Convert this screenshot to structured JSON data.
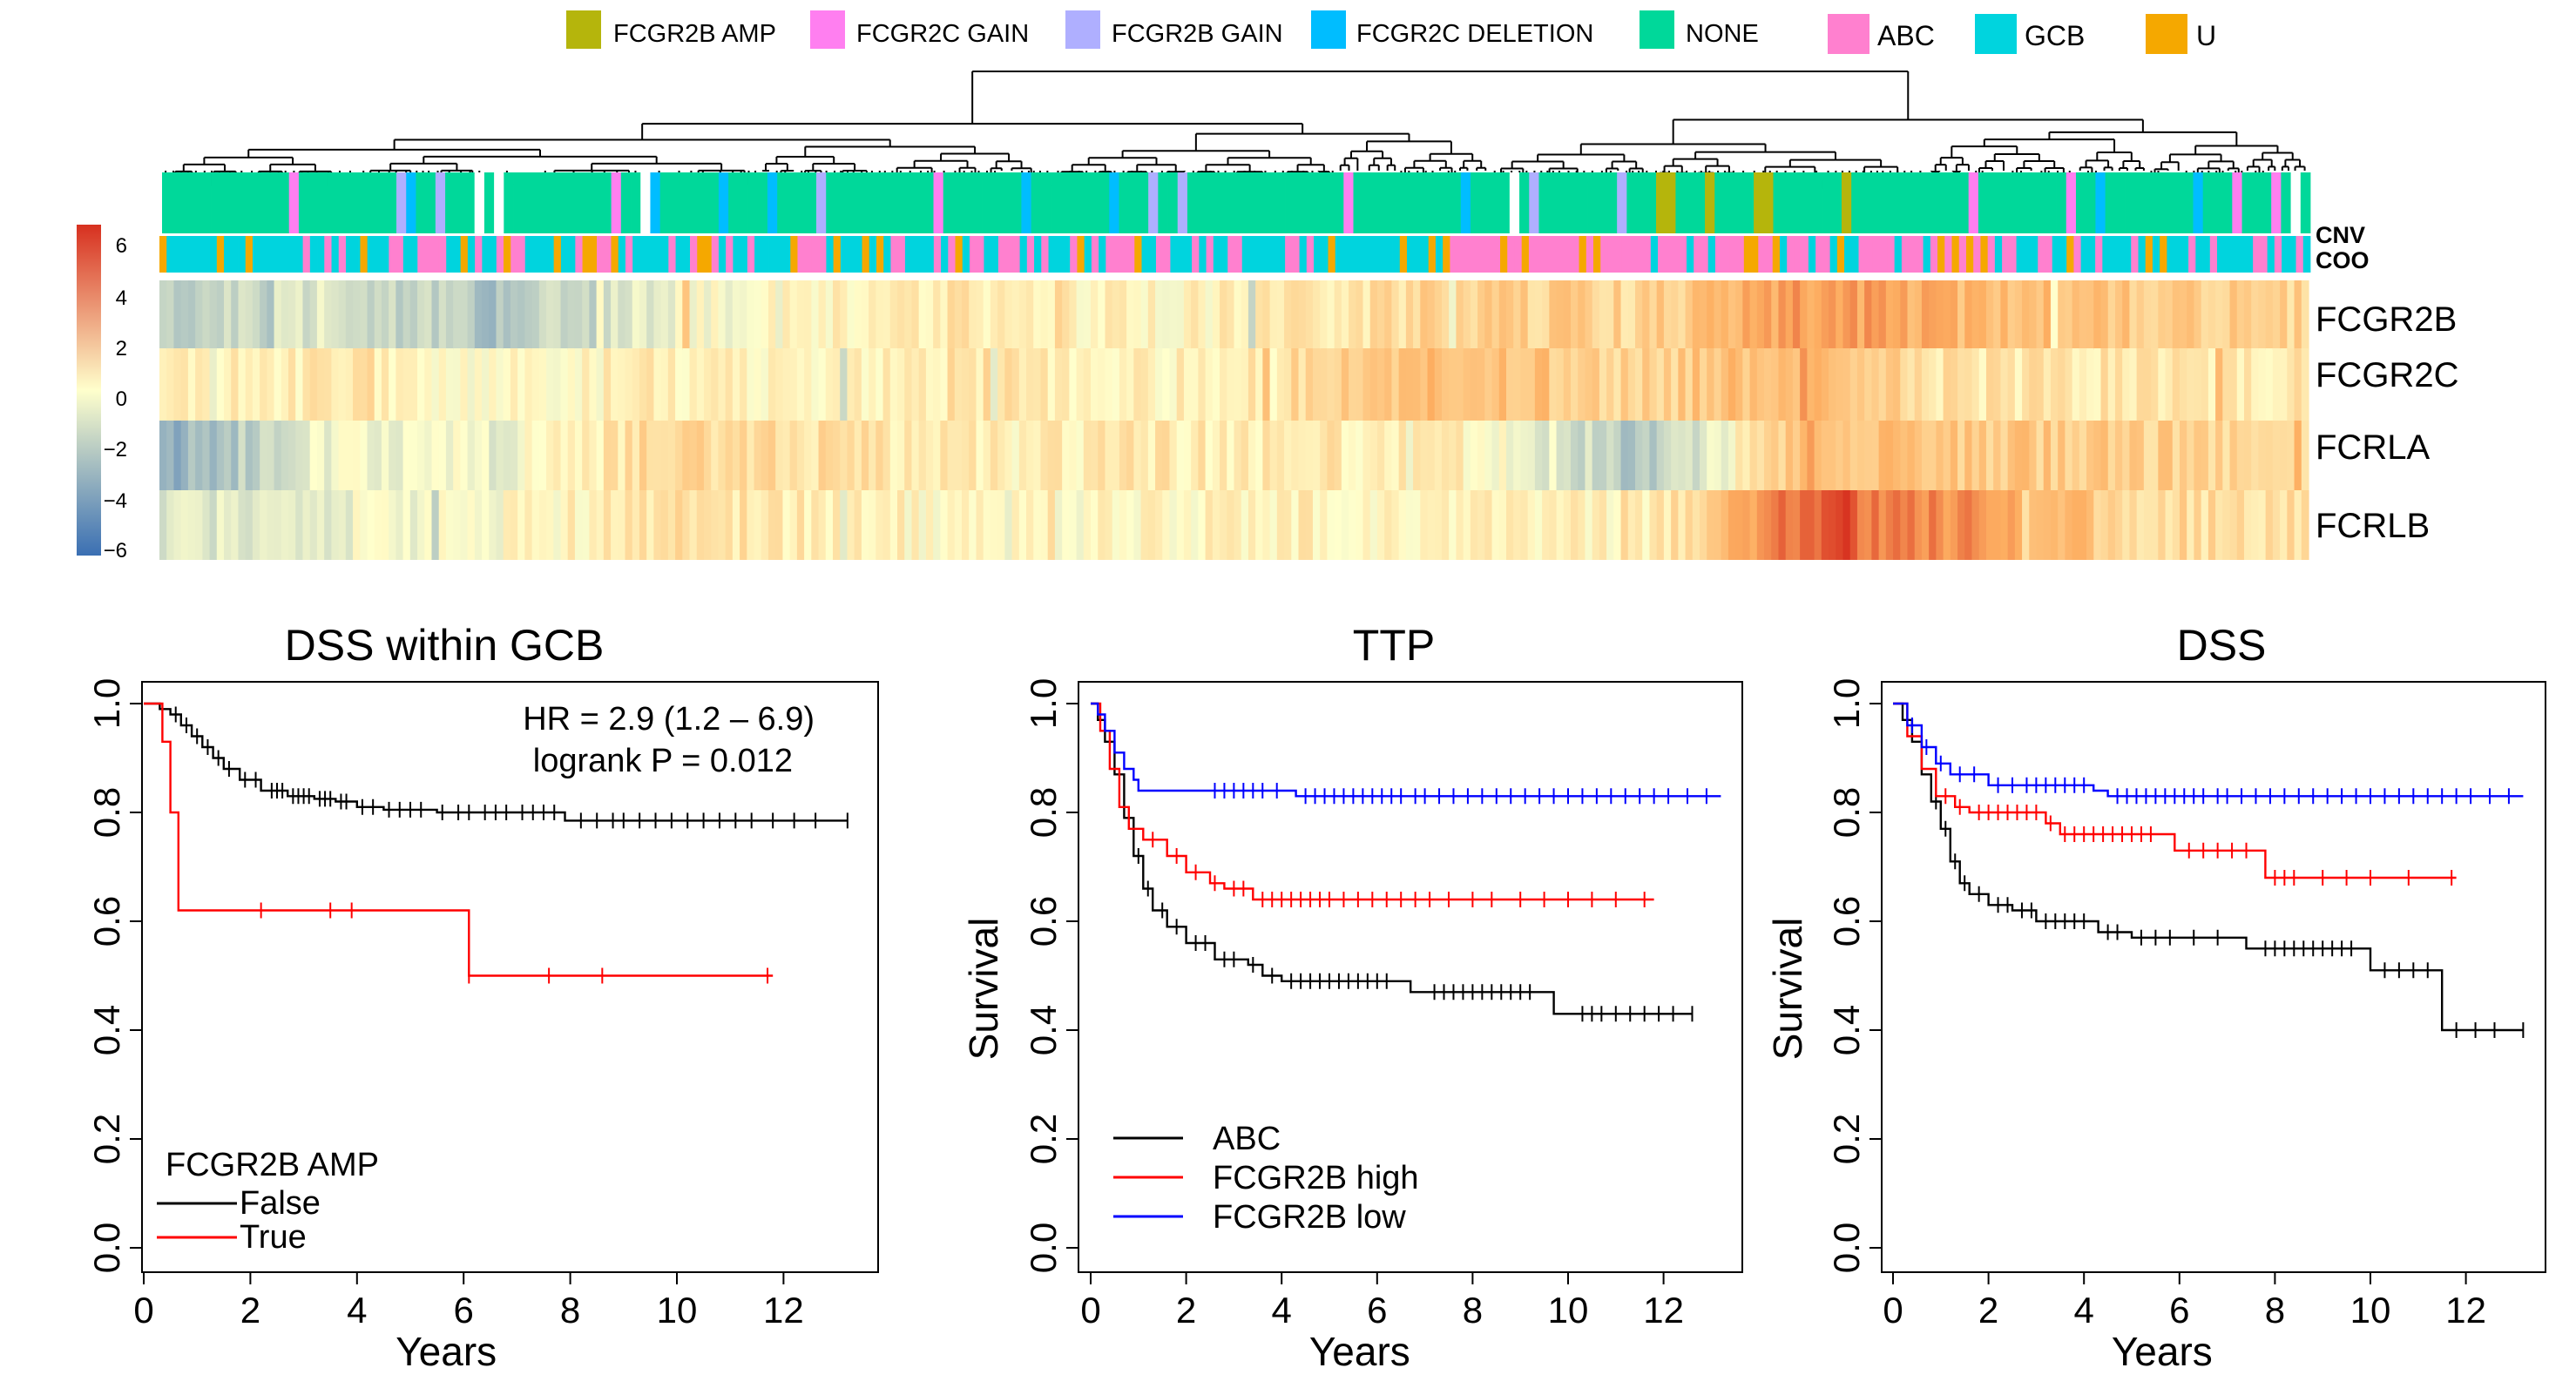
{
  "heatmap_panel": {
    "legend": {
      "cnv_keys": [
        {
          "label": "FCGR2B AMP",
          "color": "#b5b50c"
        },
        {
          "label": "FCGR2C GAIN",
          "color": "#ff7ff0"
        },
        {
          "label": "FCGR2B GAIN",
          "color": "#afafff"
        },
        {
          "label": "FCGR2C DELETION",
          "color": "#00bdff"
        },
        {
          "label": "NONE",
          "color": "#00d89a"
        }
      ],
      "coo_keys": [
        {
          "label": "ABC",
          "color": "#ff80cf"
        },
        {
          "label": "GCB",
          "color": "#00d4de"
        },
        {
          "label": "U",
          "color": "#f5a800"
        }
      ]
    },
    "annotation_labels": [
      "CNV",
      "COO"
    ],
    "color_scale": {
      "ticks": [
        "6",
        "4",
        "2",
        "0",
        "−2",
        "−4",
        "−6"
      ],
      "low_color": "#3a6fb3",
      "mid_color": "#ffffcc",
      "high_color": "#d7301f"
    }
  },
  "chart_data": [
    {
      "type": "heatmap",
      "rows": [
        "FCGR2B",
        "FCGR2C",
        "FCRLA",
        "FCRLB"
      ],
      "annotation_tracks": [
        "CNV",
        "COO"
      ],
      "value_range": [
        -6,
        6
      ],
      "column_sections": [
        {
          "FCGR2B": -2.0,
          "FCGR2C": 0.3,
          "FCRLA": -3.5,
          "FCRLB": -1.0
        },
        {
          "FCGR2B": -1.0,
          "FCGR2C": 0.8,
          "FCRLA": -0.5,
          "FCRLB": -0.5
        },
        {
          "FCGR2B": -2.5,
          "FCGR2C": 0.2,
          "FCRLA": -0.5,
          "FCRLB": 0.0
        },
        {
          "FCGR2B": -0.5,
          "FCGR2C": 0.5,
          "FCRLA": 1.5,
          "FCRLB": 1.0
        },
        {
          "FCGR2B": 0.5,
          "FCGR2C": 0.5,
          "FCRLA": 1.2,
          "FCRLB": 0.8
        },
        {
          "FCGR2B": 0.8,
          "FCGR2C": 1.0,
          "FCRLA": 0.5,
          "FCRLB": 0.0
        },
        {
          "FCGR2B": 0.3,
          "FCGR2C": 0.3,
          "FCRLA": 0.8,
          "FCRLB": 0.2
        },
        {
          "FCGR2B": 0.8,
          "FCGR2C": 1.5,
          "FCRLA": 0.8,
          "FCRLB": 0.5
        },
        {
          "FCGR2B": 1.8,
          "FCGR2C": 2.5,
          "FCRLA": 0.5,
          "FCRLB": 0.5
        },
        {
          "FCGR2B": 1.5,
          "FCGR2C": 1.5,
          "FCRLA": -2.5,
          "FCRLB": 0.3
        },
        {
          "FCGR2B": 3.5,
          "FCGR2C": 3.0,
          "FCRLA": 2.5,
          "FCRLB": 5.0
        },
        {
          "FCGR2B": 2.5,
          "FCGR2C": 0.8,
          "FCRLA": 2.0,
          "FCRLB": 3.5
        },
        {
          "FCGR2B": 2.0,
          "FCGR2C": 1.0,
          "FCRLA": 1.8,
          "FCRLB": 1.5
        },
        {
          "FCGR2B": 1.5,
          "FCGR2C": 0.8,
          "FCRLA": 1.2,
          "FCRLB": 1.0
        }
      ]
    },
    {
      "type": "line",
      "title": "DSS within GCB",
      "xlabel": "Years",
      "ylabel": "",
      "xlim": [
        0,
        13.5
      ],
      "ylim": [
        0,
        1
      ],
      "xticks": [
        "0",
        "2",
        "4",
        "6",
        "8",
        "10",
        "12"
      ],
      "yticks": [
        "0.0",
        "0.2",
        "0.4",
        "0.6",
        "0.8",
        "1.0"
      ],
      "annotations": [
        "HR = 2.9 (1.2 – 6.9)",
        "logrank P = 0.012"
      ],
      "legend_title": "FCGR2B AMP",
      "series": [
        {
          "name": "False",
          "color": "#000000",
          "steps": [
            [
              0,
              1
            ],
            [
              0.3,
              0.99
            ],
            [
              0.5,
              0.98
            ],
            [
              0.7,
              0.96
            ],
            [
              0.9,
              0.94
            ],
            [
              1.1,
              0.92
            ],
            [
              1.3,
              0.9
            ],
            [
              1.5,
              0.88
            ],
            [
              1.8,
              0.86
            ],
            [
              2.2,
              0.84
            ],
            [
              2.7,
              0.83
            ],
            [
              3.2,
              0.825
            ],
            [
              3.6,
              0.82
            ],
            [
              4.0,
              0.81
            ],
            [
              4.5,
              0.805
            ],
            [
              5.5,
              0.8
            ],
            [
              7.9,
              0.785
            ]
          ],
          "censors": [
            0.6,
            0.8,
            1.0,
            1.2,
            1.4,
            1.6,
            1.9,
            2.1,
            2.4,
            2.5,
            2.6,
            2.8,
            2.9,
            3.0,
            3.1,
            3.3,
            3.4,
            3.5,
            3.7,
            3.8,
            4.1,
            4.3,
            4.6,
            4.8,
            5.0,
            5.2,
            5.6,
            5.9,
            6.1,
            6.4,
            6.6,
            6.8,
            7.1,
            7.3,
            7.5,
            7.7,
            8.2,
            8.5,
            8.8,
            9.0,
            9.3,
            9.6,
            9.9,
            10.2,
            10.5,
            10.8,
            11.1,
            11.4,
            11.8,
            12.2,
            12.6,
            13.2
          ]
        },
        {
          "name": "True",
          "color": "#ff0000",
          "steps": [
            [
              0,
              1
            ],
            [
              0.35,
              0.93
            ],
            [
              0.5,
              0.8
            ],
            [
              0.65,
              0.62
            ],
            [
              6.1,
              0.5
            ]
          ],
          "end": 11.8,
          "censors": [
            2.2,
            3.5,
            3.9,
            6.1,
            7.6,
            8.6,
            11.7
          ]
        }
      ]
    },
    {
      "type": "line",
      "title": "TTP",
      "xlabel": "Years",
      "ylabel": "Survival",
      "xlim": [
        0,
        13.5
      ],
      "ylim": [
        0,
        1
      ],
      "xticks": [
        "0",
        "2",
        "4",
        "6",
        "8",
        "10",
        "12"
      ],
      "yticks": [
        "0.0",
        "0.2",
        "0.4",
        "0.6",
        "0.8",
        "1.0"
      ],
      "series": [
        {
          "name": "ABC",
          "color": "#000000",
          "steps": [
            [
              0,
              1
            ],
            [
              0.15,
              0.97
            ],
            [
              0.3,
              0.93
            ],
            [
              0.5,
              0.87
            ],
            [
              0.7,
              0.79
            ],
            [
              0.9,
              0.72
            ],
            [
              1.1,
              0.66
            ],
            [
              1.3,
              0.62
            ],
            [
              1.6,
              0.59
            ],
            [
              2.0,
              0.56
            ],
            [
              2.6,
              0.53
            ],
            [
              3.3,
              0.52
            ],
            [
              3.6,
              0.5
            ],
            [
              4.0,
              0.49
            ],
            [
              6.7,
              0.47
            ],
            [
              9.7,
              0.43
            ]
          ],
          "censors": [
            1.0,
            1.2,
            1.5,
            1.8,
            2.2,
            2.4,
            2.8,
            3.0,
            3.4,
            3.8,
            4.2,
            4.4,
            4.6,
            4.8,
            5.0,
            5.2,
            5.4,
            5.6,
            5.8,
            6.0,
            6.2,
            7.2,
            7.4,
            7.6,
            7.8,
            8.0,
            8.2,
            8.4,
            8.6,
            8.8,
            9.0,
            9.2,
            10.3,
            10.5,
            10.7,
            11.0,
            11.3,
            11.6,
            11.9,
            12.2,
            12.6
          ]
        },
        {
          "name": "FCGR2B high",
          "color": "#ff0000",
          "steps": [
            [
              0,
              1
            ],
            [
              0.2,
              0.95
            ],
            [
              0.4,
              0.88
            ],
            [
              0.6,
              0.81
            ],
            [
              0.8,
              0.77
            ],
            [
              1.1,
              0.75
            ],
            [
              1.6,
              0.72
            ],
            [
              2.0,
              0.69
            ],
            [
              2.5,
              0.67
            ],
            [
              2.8,
              0.66
            ],
            [
              3.4,
              0.64
            ]
          ],
          "end": 11.8,
          "censors": [
            1.3,
            1.8,
            2.2,
            2.6,
            3.0,
            3.2,
            3.6,
            3.8,
            4.0,
            4.2,
            4.4,
            4.6,
            4.8,
            5.0,
            5.3,
            5.6,
            5.9,
            6.2,
            6.5,
            6.8,
            7.1,
            7.5,
            8.0,
            8.4,
            9.0,
            9.5,
            10.0,
            10.5,
            11.0,
            11.6
          ]
        },
        {
          "name": "FCGR2B low",
          "color": "#0000ff",
          "steps": [
            [
              0,
              1
            ],
            [
              0.15,
              0.98
            ],
            [
              0.3,
              0.95
            ],
            [
              0.5,
              0.91
            ],
            [
              0.7,
              0.88
            ],
            [
              0.9,
              0.86
            ],
            [
              1.0,
              0.84
            ],
            [
              4.3,
              0.83
            ]
          ],
          "end": 13.2,
          "censors": [
            2.6,
            2.8,
            3.0,
            3.2,
            3.4,
            3.6,
            3.9,
            4.5,
            4.7,
            4.9,
            5.1,
            5.3,
            5.5,
            5.7,
            5.9,
            6.1,
            6.3,
            6.5,
            6.8,
            7.0,
            7.3,
            7.6,
            7.9,
            8.2,
            8.5,
            8.8,
            9.1,
            9.4,
            9.7,
            10.0,
            10.3,
            10.6,
            10.9,
            11.2,
            11.5,
            11.8,
            12.1,
            12.5,
            12.9
          ]
        }
      ]
    },
    {
      "type": "line",
      "title": "DSS",
      "xlabel": "Years",
      "ylabel": "Survival",
      "xlim": [
        0,
        13.5
      ],
      "ylim": [
        0,
        1
      ],
      "xticks": [
        "0",
        "2",
        "4",
        "6",
        "8",
        "10",
        "12"
      ],
      "yticks": [
        "0.0",
        "0.2",
        "0.4",
        "0.6",
        "0.8",
        "1.0"
      ],
      "series": [
        {
          "name": "ABC",
          "color": "#000000",
          "steps": [
            [
              0,
              1
            ],
            [
              0.2,
              0.97
            ],
            [
              0.4,
              0.93
            ],
            [
              0.6,
              0.87
            ],
            [
              0.8,
              0.82
            ],
            [
              1.0,
              0.77
            ],
            [
              1.2,
              0.71
            ],
            [
              1.4,
              0.67
            ],
            [
              1.6,
              0.65
            ],
            [
              2.0,
              0.63
            ],
            [
              2.5,
              0.62
            ],
            [
              3.0,
              0.6
            ],
            [
              4.3,
              0.58
            ],
            [
              5.0,
              0.57
            ],
            [
              7.4,
              0.55
            ],
            [
              10.0,
              0.51
            ],
            [
              11.5,
              0.4
            ]
          ],
          "censors": [
            0.9,
            1.1,
            1.3,
            1.5,
            1.8,
            2.2,
            2.4,
            2.7,
            2.9,
            3.2,
            3.4,
            3.6,
            3.8,
            4.0,
            4.5,
            4.7,
            5.2,
            5.5,
            5.8,
            6.3,
            6.8,
            7.8,
            8.0,
            8.2,
            8.4,
            8.6,
            8.8,
            9.0,
            9.2,
            9.4,
            9.6,
            10.3,
            10.6,
            10.9,
            11.2,
            11.8,
            12.2,
            12.6,
            13.2
          ]
        },
        {
          "name": "FCGR2B high",
          "color": "#ff0000",
          "steps": [
            [
              0,
              1
            ],
            [
              0.3,
              0.94
            ],
            [
              0.6,
              0.88
            ],
            [
              0.9,
              0.83
            ],
            [
              1.3,
              0.81
            ],
            [
              1.6,
              0.8
            ],
            [
              3.2,
              0.78
            ],
            [
              3.5,
              0.76
            ],
            [
              5.9,
              0.73
            ],
            [
              7.8,
              0.68
            ]
          ],
          "end": 11.8,
          "censors": [
            1.1,
            1.4,
            1.8,
            2.0,
            2.2,
            2.4,
            2.6,
            2.8,
            3.0,
            3.3,
            3.6,
            3.8,
            4.0,
            4.2,
            4.4,
            4.6,
            4.8,
            5.0,
            5.2,
            5.4,
            6.2,
            6.5,
            6.8,
            7.1,
            7.4,
            8.0,
            8.2,
            8.4,
            9.0,
            9.5,
            10.0,
            10.8,
            11.7
          ]
        },
        {
          "name": "FCGR2B low",
          "color": "#0000ff",
          "steps": [
            [
              0,
              1
            ],
            [
              0.3,
              0.96
            ],
            [
              0.6,
              0.92
            ],
            [
              0.9,
              0.89
            ],
            [
              1.2,
              0.87
            ],
            [
              2.0,
              0.85
            ],
            [
              4.2,
              0.84
            ],
            [
              4.5,
              0.83
            ]
          ],
          "end": 13.2,
          "censors": [
            0.4,
            0.7,
            1.0,
            1.4,
            1.7,
            2.2,
            2.5,
            2.8,
            3.0,
            3.2,
            3.4,
            3.6,
            3.8,
            4.0,
            4.7,
            4.9,
            5.1,
            5.3,
            5.5,
            5.7,
            5.9,
            6.1,
            6.3,
            6.5,
            6.8,
            7.0,
            7.3,
            7.6,
            7.9,
            8.2,
            8.5,
            8.8,
            9.1,
            9.4,
            9.7,
            10.0,
            10.3,
            10.6,
            10.9,
            11.2,
            11.5,
            11.8,
            12.1,
            12.5,
            12.9
          ]
        }
      ]
    }
  ]
}
